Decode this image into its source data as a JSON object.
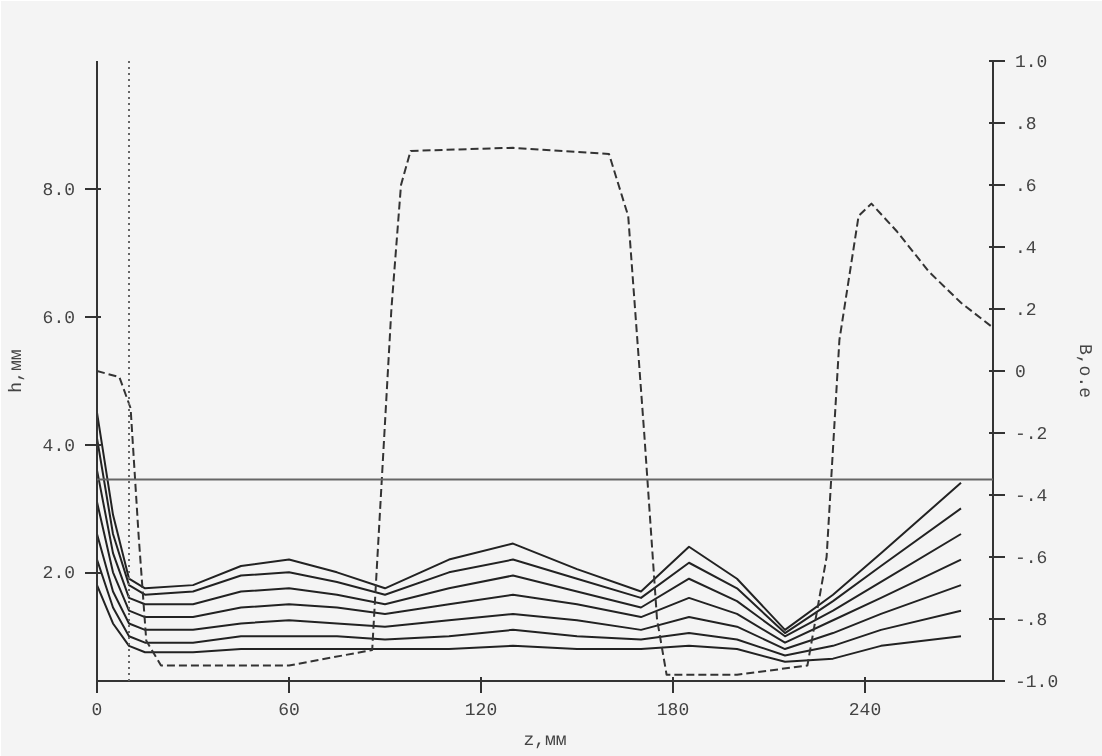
{
  "chart_data": {
    "type": "line",
    "ylabel": "h,мм",
    "y2label": "B,о.е",
    "xlabel": "z,мм",
    "xlim": [
      0,
      280
    ],
    "xticks": [
      0,
      60,
      120,
      180,
      240
    ],
    "ylim": [
      0.3,
      10
    ],
    "yticks": [
      {
        "value": 2,
        "label": "2.0"
      },
      {
        "value": 4,
        "label": "4.0"
      },
      {
        "value": 6,
        "label": "6.0"
      },
      {
        "value": 8,
        "label": "8.0"
      }
    ],
    "y2lim": [
      -1,
      1
    ],
    "y2ticks": [
      {
        "value": 1,
        "label": "1.0"
      },
      {
        "value": 0.8,
        "label": ".8"
      },
      {
        "value": 0.6,
        "label": ".6"
      },
      {
        "value": 0.4,
        "label": ".4"
      },
      {
        "value": 0.2,
        "label": ".2"
      },
      0,
      {
        "value": -0.2,
        "label": "-.2"
      },
      {
        "value": -0.4,
        "label": "-.4"
      },
      {
        "value": -0.6,
        "label": "-.6"
      },
      {
        "value": -0.8,
        "label": "-.8"
      },
      {
        "value": -1,
        "label": "-1.0"
      }
    ],
    "x": [
      0,
      5,
      10,
      15,
      30,
      45,
      60,
      75,
      90,
      110,
      130,
      150,
      170,
      185,
      200,
      215,
      230,
      245,
      270
    ],
    "series": [
      {
        "color": "#222222",
        "values": [
          4.5,
          2.9,
          1.9,
          1.75,
          1.8,
          2.1,
          2.2,
          2.0,
          1.75,
          2.2,
          2.45,
          2.05,
          1.7,
          2.4,
          1.9,
          1.1,
          1.65,
          2.3,
          3.4
        ]
      },
      {
        "color": "#222222",
        "values": [
          4.1,
          2.6,
          1.8,
          1.65,
          1.7,
          1.95,
          2.0,
          1.85,
          1.65,
          2.0,
          2.2,
          1.9,
          1.6,
          2.15,
          1.75,
          1.05,
          1.55,
          2.1,
          3.0
        ]
      },
      {
        "color": "#222222",
        "values": [
          3.6,
          2.3,
          1.6,
          1.5,
          1.5,
          1.7,
          1.75,
          1.65,
          1.5,
          1.75,
          1.95,
          1.7,
          1.45,
          1.9,
          1.55,
          1.0,
          1.4,
          1.85,
          2.6
        ]
      },
      {
        "color": "#222222",
        "values": [
          3.1,
          2.0,
          1.4,
          1.3,
          1.3,
          1.45,
          1.5,
          1.45,
          1.35,
          1.5,
          1.65,
          1.5,
          1.3,
          1.6,
          1.35,
          0.9,
          1.25,
          1.6,
          2.2
        ]
      },
      {
        "color": "#222222",
        "values": [
          2.6,
          1.7,
          1.2,
          1.1,
          1.1,
          1.2,
          1.25,
          1.2,
          1.15,
          1.25,
          1.35,
          1.25,
          1.1,
          1.3,
          1.15,
          0.8,
          1.05,
          1.35,
          1.8
        ]
      },
      {
        "color": "#222222",
        "values": [
          2.2,
          1.45,
          1.0,
          0.9,
          0.9,
          1.0,
          1.0,
          1.0,
          0.95,
          1.0,
          1.1,
          1.0,
          0.95,
          1.05,
          0.95,
          0.7,
          0.85,
          1.1,
          1.4
        ]
      },
      {
        "color": "#222222",
        "values": [
          1.8,
          1.2,
          0.85,
          0.75,
          0.75,
          0.8,
          0.8,
          0.8,
          0.8,
          0.8,
          0.85,
          0.8,
          0.8,
          0.85,
          0.8,
          0.6,
          0.65,
          0.85,
          1.0
        ]
      },
      {
        "color": "#333333",
        "axis": "y2",
        "line_style": "dashed",
        "x": [
          0,
          7,
          10.5,
          13,
          15.4,
          20,
          60,
          86,
          92,
          95,
          98,
          130,
          160,
          166,
          171,
          175,
          178,
          200,
          222,
          228,
          232,
          238,
          242,
          250,
          260,
          270,
          280
        ],
        "values": [
          0,
          -0.02,
          -0.12,
          -0.53,
          -0.87,
          -0.95,
          -0.95,
          -0.9,
          0.2,
          0.6,
          0.71,
          0.72,
          0.7,
          0.5,
          -0.2,
          -0.8,
          -0.98,
          -0.98,
          -0.95,
          -0.6,
          0.1,
          0.5,
          0.54,
          0.45,
          0.32,
          0.22,
          0.14
        ]
      }
    ],
    "ref_lines": [
      {
        "axis": "y2",
        "value": -0.35,
        "color": "#666666"
      },
      {
        "axis": "x",
        "value": 10,
        "color": "#666666",
        "line_style": "dotted"
      }
    ],
    "grid": false
  }
}
